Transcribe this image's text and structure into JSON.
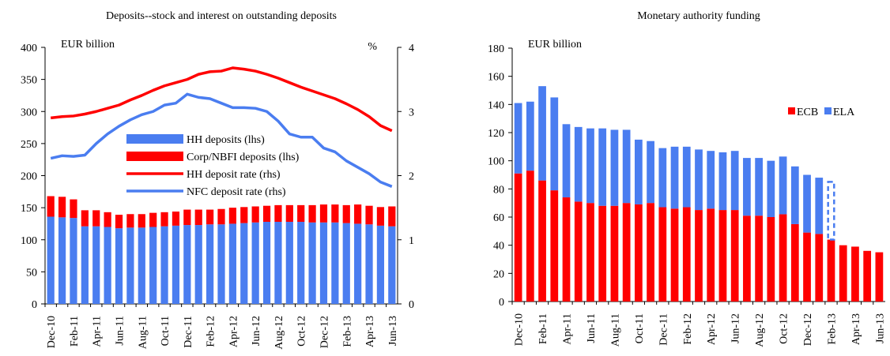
{
  "chart_data": [
    {
      "type": "combo",
      "title": "Deposits--stock and interest on outstanding deposits",
      "ylabel": "EUR billion",
      "y2label": "%",
      "categories": [
        "Dec-10",
        null,
        "Feb-11",
        null,
        "Apr-11",
        null,
        "Jun-11",
        null,
        "Aug-11",
        null,
        "Oct-11",
        null,
        "Dec-11",
        null,
        "Feb-12",
        null,
        "Apr-12",
        null,
        "Jun-12",
        null,
        "Aug-12",
        null,
        "Oct-12",
        null,
        "Dec-12",
        null,
        "Feb-13",
        null,
        "Apr-13",
        null,
        "Jun-13"
      ],
      "series": [
        {
          "name": "HH deposits (lhs)",
          "kind": "bar",
          "color": "#4a7df0",
          "values": [
            136,
            135,
            134,
            121,
            121,
            120,
            118,
            119,
            119,
            120,
            121,
            122,
            123,
            123,
            124,
            124,
            125,
            126,
            127,
            128,
            128,
            128,
            128,
            127,
            127,
            127,
            126,
            125,
            124,
            122,
            121
          ]
        },
        {
          "name": "Corp/NBFI deposits (lhs)",
          "kind": "bar",
          "color": "#ff0000",
          "values": [
            32,
            32,
            29,
            25,
            25,
            23,
            21,
            21,
            21,
            22,
            22,
            22,
            24,
            24,
            23,
            24,
            25,
            25,
            25,
            25,
            26,
            26,
            26,
            27,
            28,
            28,
            28,
            30,
            29,
            29,
            31
          ]
        },
        {
          "name": "HH deposit rate (rhs)",
          "kind": "line",
          "axis": "y2",
          "color": "#ff0000",
          "values": [
            2.9,
            2.92,
            2.93,
            2.96,
            3.0,
            3.05,
            3.1,
            3.18,
            3.25,
            3.33,
            3.4,
            3.45,
            3.5,
            3.58,
            3.62,
            3.63,
            3.68,
            3.66,
            3.63,
            3.58,
            3.52,
            3.45,
            3.38,
            3.32,
            3.26,
            3.2,
            3.12,
            3.03,
            2.92,
            2.78,
            2.7
          ]
        },
        {
          "name": "NFC deposit rate (rhs)",
          "kind": "line",
          "axis": "y2",
          "color": "#4a7df0",
          "values": [
            2.27,
            2.31,
            2.3,
            2.32,
            2.5,
            2.65,
            2.77,
            2.87,
            2.95,
            3.0,
            3.1,
            3.13,
            3.27,
            3.22,
            3.2,
            3.13,
            3.06,
            3.06,
            3.05,
            3.0,
            2.85,
            2.65,
            2.6,
            2.6,
            2.43,
            2.37,
            2.23,
            2.13,
            2.03,
            1.9,
            1.83
          ]
        }
      ],
      "ylim": [
        0,
        400
      ],
      "yticks": [
        0,
        50,
        100,
        150,
        200,
        250,
        300,
        350,
        400
      ],
      "y2lim": [
        0,
        4
      ],
      "y2ticks": [
        0,
        1,
        2,
        3,
        4
      ],
      "legend": "center"
    },
    {
      "type": "bar",
      "title": "Monetary authority funding",
      "ylabel": "EUR billion",
      "categories": [
        "Dec-10",
        null,
        "Feb-11",
        null,
        "Apr-11",
        null,
        "Jun-11",
        null,
        "Aug-11",
        null,
        "Oct-11",
        null,
        "Dec-11",
        null,
        "Feb-12",
        null,
        "Apr-12",
        null,
        "Jun-12",
        null,
        "Aug-12",
        null,
        "Oct-12",
        null,
        "Dec-12",
        null,
        "Feb-13",
        null,
        "Apr-13",
        null,
        "Jun-13"
      ],
      "series": [
        {
          "name": "ECB",
          "kind": "bar",
          "color": "#ff0000",
          "values": [
            91,
            93,
            86,
            79,
            74,
            71,
            70,
            68,
            68,
            70,
            69,
            70,
            67,
            66,
            67,
            65,
            66,
            65,
            65,
            61,
            61,
            60,
            62,
            55,
            49,
            48,
            44,
            40,
            39,
            36,
            35
          ]
        },
        {
          "name": "ELA",
          "kind": "bar",
          "color": "#4a7df0",
          "values": [
            50,
            49,
            67,
            66,
            52,
            53,
            53,
            55,
            54,
            52,
            46,
            44,
            42,
            44,
            43,
            43,
            41,
            41,
            42,
            41,
            41,
            40,
            41,
            41,
            41,
            40,
            41,
            null,
            null,
            null,
            null
          ],
          "dashed_points": [
            26
          ]
        }
      ],
      "ylim": [
        0,
        180
      ],
      "yticks": [
        0,
        20,
        40,
        60,
        80,
        100,
        120,
        140,
        160,
        180
      ],
      "legend": "upper right"
    }
  ]
}
